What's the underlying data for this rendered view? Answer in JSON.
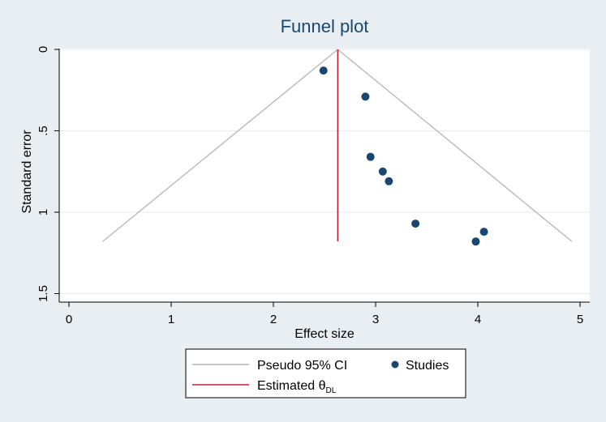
{
  "chart_data": {
    "type": "scatter",
    "title": "Funnel plot",
    "xlabel": "Effect size",
    "ylabel": "Standard error",
    "xlim": [
      0,
      5
    ],
    "ylim": [
      0,
      1.5
    ],
    "y_reversed": true,
    "x_ticks": [
      "0",
      "1",
      "2",
      "3",
      "4",
      "5"
    ],
    "y_ticks": [
      "0",
      ".5",
      "1",
      "1.5"
    ],
    "pseudo_ci": {
      "name": "Pseudo 95% CI",
      "apex": [
        2.63,
        0
      ],
      "left_end": [
        0.33,
        1.18
      ],
      "right_end": [
        4.92,
        1.18
      ],
      "color": "#b4b4b4"
    },
    "estimate": {
      "name": "Estimated θ",
      "subscript": "DL",
      "x": 2.63,
      "y_range": [
        0,
        1.18
      ],
      "color": "#c41e3a"
    },
    "series": [
      {
        "name": "Studies",
        "color": "#1a476f",
        "points": [
          {
            "x": 2.49,
            "y": 0.13
          },
          {
            "x": 2.9,
            "y": 0.29
          },
          {
            "x": 2.95,
            "y": 0.66
          },
          {
            "x": 3.07,
            "y": 0.75
          },
          {
            "x": 3.13,
            "y": 0.81
          },
          {
            "x": 3.39,
            "y": 1.07
          },
          {
            "x": 3.98,
            "y": 1.18
          },
          {
            "x": 4.06,
            "y": 1.12
          }
        ]
      }
    ],
    "grid": true,
    "legend": "bottom"
  }
}
